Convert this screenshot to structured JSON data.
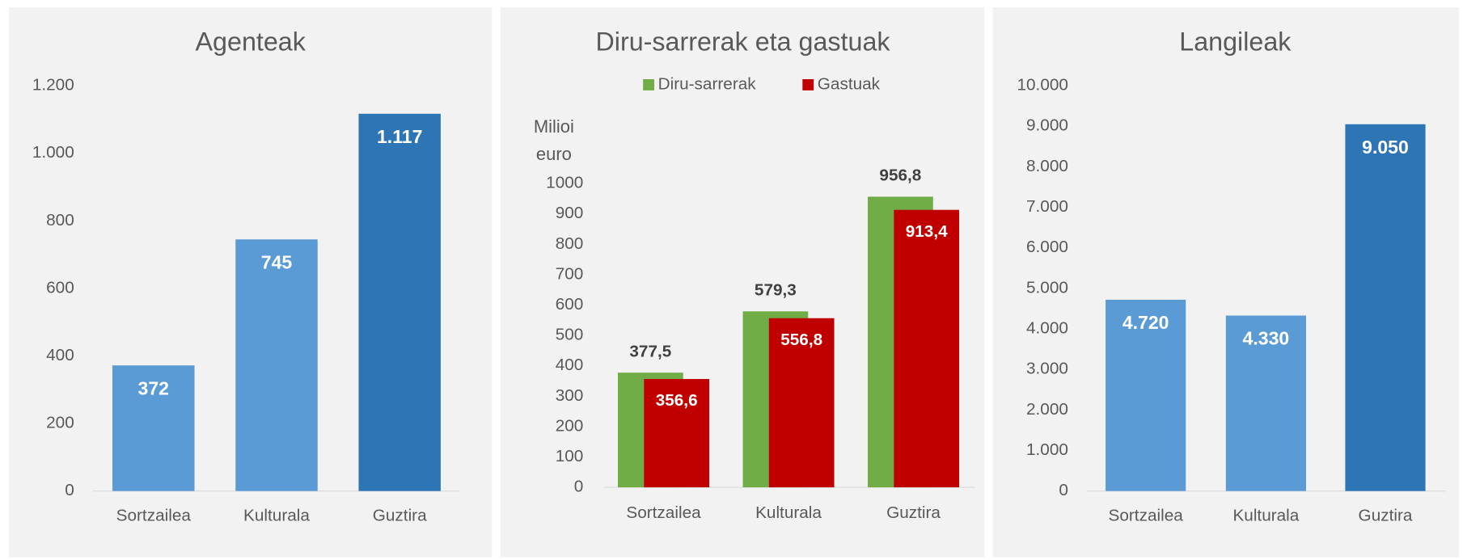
{
  "chart_data": [
    {
      "type": "bar",
      "title": "Agenteak",
      "categories": [
        "Sortzailea",
        "Kulturala",
        "Guztira"
      ],
      "values": [
        372,
        745,
        1117
      ],
      "value_labels": [
        "372",
        "745",
        "1.117"
      ],
      "colors": [
        "#5b9bd5",
        "#5b9bd5",
        "#2e75b6"
      ],
      "ylim": [
        0,
        1200
      ],
      "yticks": [
        0,
        200,
        400,
        600,
        800,
        {
          "value": 1000,
          "label": "1.000"
        },
        {
          "value": 1200,
          "label": "1.200"
        }
      ]
    },
    {
      "type": "grouped_bar",
      "title": "Diru-sarrerak eta gastuak",
      "y_label": "Milioi euro",
      "categories": [
        "Sortzailea",
        "Kulturala",
        "Guztira"
      ],
      "series": [
        {
          "name": "Diru-sarrerak",
          "color": "#70ad47",
          "values": [
            377.5,
            579.3,
            956.8
          ],
          "value_labels": [
            "377,5",
            "579,3",
            "956,8"
          ]
        },
        {
          "name": "Gastuak",
          "color": "#c00000",
          "values": [
            356.6,
            556.8,
            913.4
          ],
          "value_labels": [
            "356,6",
            "556,8",
            "913,4"
          ]
        }
      ],
      "legend": "top",
      "ylim": [
        0,
        1000
      ],
      "yticks": [
        0,
        100,
        200,
        300,
        400,
        500,
        600,
        700,
        800,
        900,
        1000
      ]
    },
    {
      "type": "bar",
      "title": "Langileak",
      "categories": [
        "Sortzailea",
        "Kulturala",
        "Guztira"
      ],
      "values": [
        4720,
        4330,
        9050
      ],
      "value_labels": [
        "4.720",
        "4.330",
        "9.050"
      ],
      "colors": [
        "#5b9bd5",
        "#5b9bd5",
        "#2e75b6"
      ],
      "ylim": [
        0,
        10000
      ],
      "yticks": [
        0,
        {
          "value": 1000,
          "label": "1.000"
        },
        {
          "value": 2000,
          "label": "2.000"
        },
        {
          "value": 3000,
          "label": "3.000"
        },
        {
          "value": 4000,
          "label": "4.000"
        },
        {
          "value": 5000,
          "label": "5.000"
        },
        {
          "value": 6000,
          "label": "6.000"
        },
        {
          "value": 7000,
          "label": "7.000"
        },
        {
          "value": 8000,
          "label": "8.000"
        },
        {
          "value": 9000,
          "label": "9.000"
        },
        {
          "value": 10000,
          "label": "10.000"
        }
      ]
    }
  ]
}
